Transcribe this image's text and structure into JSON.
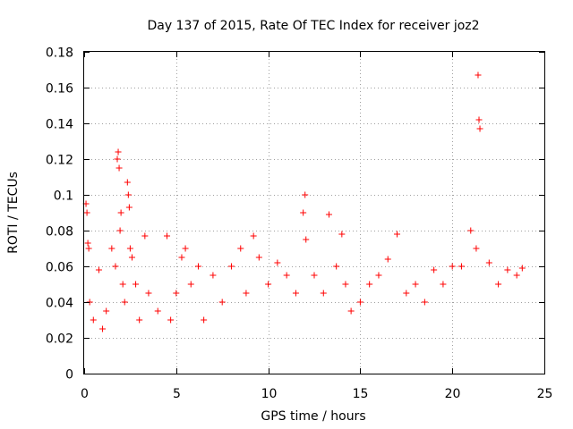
{
  "chart_data": {
    "type": "scatter",
    "title": "Day 137 of 2015, Rate Of TEC Index for receiver joz2",
    "xlabel": "GPS time / hours",
    "ylabel": "ROTI / TECUs",
    "xlim": [
      0,
      25
    ],
    "ylim": [
      0,
      0.18
    ],
    "xticks": [
      0,
      5,
      10,
      15,
      20,
      25
    ],
    "xtick_labels": [
      "0",
      "5",
      "10",
      "15",
      "20",
      "25"
    ],
    "yticks": [
      0,
      0.02,
      0.04,
      0.06,
      0.08,
      0.1,
      0.12,
      0.14,
      0.16,
      0.18
    ],
    "ytick_labels": [
      "0",
      "0.02",
      "0.04",
      "0.06",
      "0.08",
      "0.1",
      "0.12",
      "0.14",
      "0.16",
      "0.18"
    ],
    "grid": true,
    "marker": "+",
    "color": "#ff0000",
    "series": [
      {
        "name": "joz2",
        "x": [
          0.1,
          0.15,
          0.2,
          0.25,
          0.3,
          0.5,
          0.8,
          1.0,
          1.2,
          1.5,
          1.7,
          1.8,
          1.85,
          1.9,
          1.95,
          2.0,
          2.1,
          2.2,
          2.35,
          2.4,
          2.45,
          2.5,
          2.6,
          2.8,
          3.0,
          3.3,
          3.5,
          4.0,
          4.5,
          4.7,
          5.0,
          5.3,
          5.5,
          5.8,
          6.2,
          6.5,
          7.0,
          7.5,
          8.0,
          8.5,
          8.8,
          9.2,
          9.5,
          10.0,
          10.5,
          11.0,
          11.5,
          11.9,
          12.0,
          12.05,
          12.5,
          13.0,
          13.3,
          13.7,
          14.0,
          14.2,
          14.5,
          15.0,
          15.5,
          16.0,
          16.5,
          17.0,
          17.5,
          18.0,
          18.5,
          19.0,
          19.5,
          20.0,
          20.5,
          21.0,
          21.3,
          21.4,
          21.45,
          21.5,
          22.0,
          22.5,
          23.0,
          23.5,
          23.8
        ],
        "y": [
          0.095,
          0.09,
          0.073,
          0.07,
          0.04,
          0.03,
          0.058,
          0.025,
          0.035,
          0.07,
          0.06,
          0.12,
          0.124,
          0.115,
          0.08,
          0.09,
          0.05,
          0.04,
          0.107,
          0.1,
          0.093,
          0.07,
          0.065,
          0.05,
          0.03,
          0.077,
          0.045,
          0.035,
          0.077,
          0.03,
          0.045,
          0.065,
          0.07,
          0.05,
          0.06,
          0.03,
          0.055,
          0.04,
          0.06,
          0.07,
          0.045,
          0.077,
          0.065,
          0.05,
          0.062,
          0.055,
          0.045,
          0.09,
          0.1,
          0.075,
          0.055,
          0.045,
          0.089,
          0.06,
          0.078,
          0.05,
          0.035,
          0.04,
          0.05,
          0.055,
          0.064,
          0.078,
          0.045,
          0.05,
          0.04,
          0.058,
          0.05,
          0.06,
          0.06,
          0.08,
          0.07,
          0.167,
          0.142,
          0.137,
          0.062,
          0.05,
          0.058,
          0.055,
          0.059
        ]
      }
    ]
  }
}
